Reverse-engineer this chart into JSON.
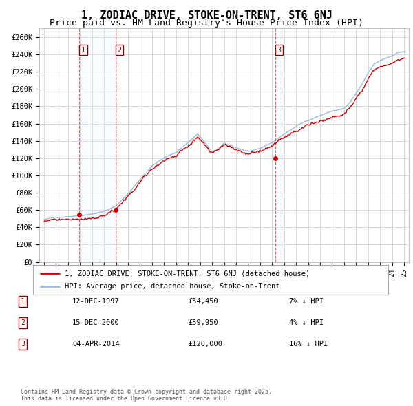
{
  "title": "1, ZODIAC DRIVE, STOKE-ON-TRENT, ST6 6NJ",
  "subtitle": "Price paid vs. HM Land Registry's House Price Index (HPI)",
  "ylim": [
    0,
    270000
  ],
  "yticks": [
    0,
    20000,
    40000,
    60000,
    80000,
    100000,
    120000,
    140000,
    160000,
    180000,
    200000,
    220000,
    240000,
    260000
  ],
  "ytick_labels": [
    "£0",
    "£20K",
    "£40K",
    "£60K",
    "£80K",
    "£100K",
    "£120K",
    "£140K",
    "£160K",
    "£180K",
    "£200K",
    "£220K",
    "£240K",
    "£260K"
  ],
  "transactions": [
    {
      "date": "12-DEC-1997",
      "year": 1997.95,
      "price": 54450,
      "label": "1",
      "pct": "7%",
      "dir": "↓"
    },
    {
      "date": "15-DEC-2000",
      "year": 2000.95,
      "price": 59950,
      "label": "2",
      "pct": "4%",
      "dir": "↓"
    },
    {
      "date": "04-APR-2014",
      "year": 2014.27,
      "price": 120000,
      "label": "3",
      "pct": "16%",
      "dir": "↓"
    }
  ],
  "legend_line1": "1, ZODIAC DRIVE, STOKE-ON-TRENT, ST6 6NJ (detached house)",
  "legend_line2": "HPI: Average price, detached house, Stoke-on-Trent",
  "copyright": "Contains HM Land Registry data © Crown copyright and database right 2025.\nThis data is licensed under the Open Government Licence v3.0.",
  "line_red_color": "#cc0000",
  "line_blue_color": "#99bbdd",
  "shade_color": "#ddeeff",
  "background_color": "#ffffff",
  "grid_color": "#cccccc",
  "title_fontsize": 11,
  "subtitle_fontsize": 9.5
}
